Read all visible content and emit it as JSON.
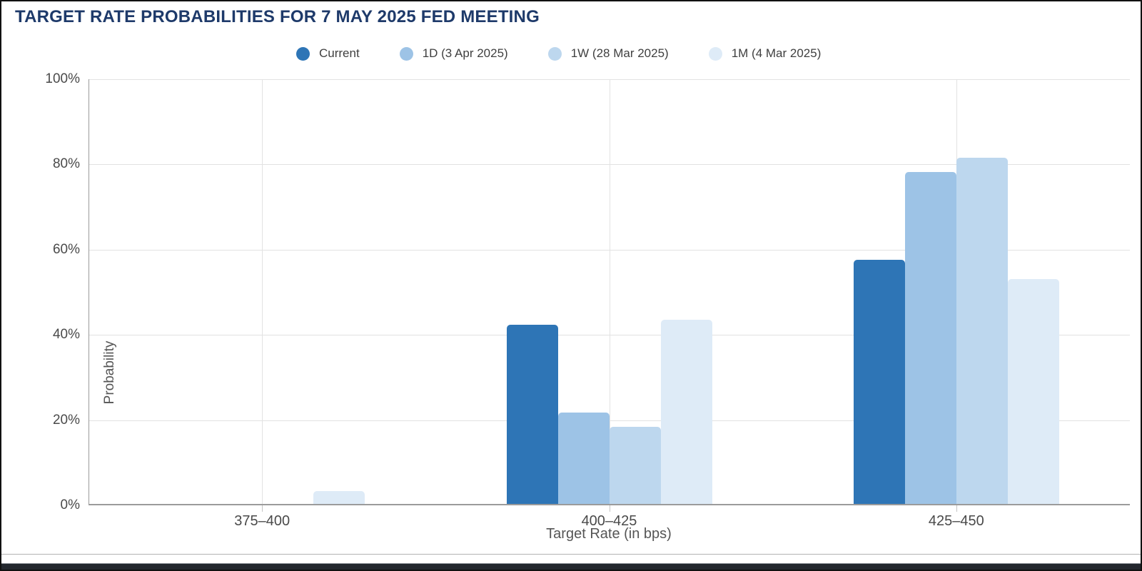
{
  "chart_data": {
    "type": "bar",
    "title": "TARGET RATE PROBABILITIES FOR 7 MAY 2025 FED MEETING",
    "categories": [
      "375–400",
      "400–425",
      "425–450"
    ],
    "series": [
      {
        "name": "Current",
        "color": "#2E75B6",
        "values": [
          0,
          42.4,
          57.6
        ]
      },
      {
        "name": "1D (3 Apr 2025)",
        "color": "#9DC3E6",
        "values": [
          0,
          21.8,
          78.2
        ]
      },
      {
        "name": "1W (28 Mar 2025)",
        "color": "#BDD7EE",
        "values": [
          0,
          18.4,
          81.6
        ]
      },
      {
        "name": "1M (4 Mar 2025)",
        "color": "#DEEBF7",
        "values": [
          3.4,
          43.5,
          53.1
        ]
      }
    ],
    "xlabel": "Target Rate (in bps)",
    "ylabel": "Probability",
    "ylim": [
      0,
      100
    ],
    "yticks": [
      "0%",
      "20%",
      "40%",
      "60%",
      "80%",
      "100%"
    ],
    "grid": true,
    "legend_position": "top"
  },
  "colors": {
    "title_text": "#1E3A6A",
    "axis_line": "#9B9B9B",
    "grid_line": "#E2E2E2",
    "tick_text": "#4A4A4A",
    "axis_title_text": "#555555",
    "footer_bar": "#23272E"
  }
}
